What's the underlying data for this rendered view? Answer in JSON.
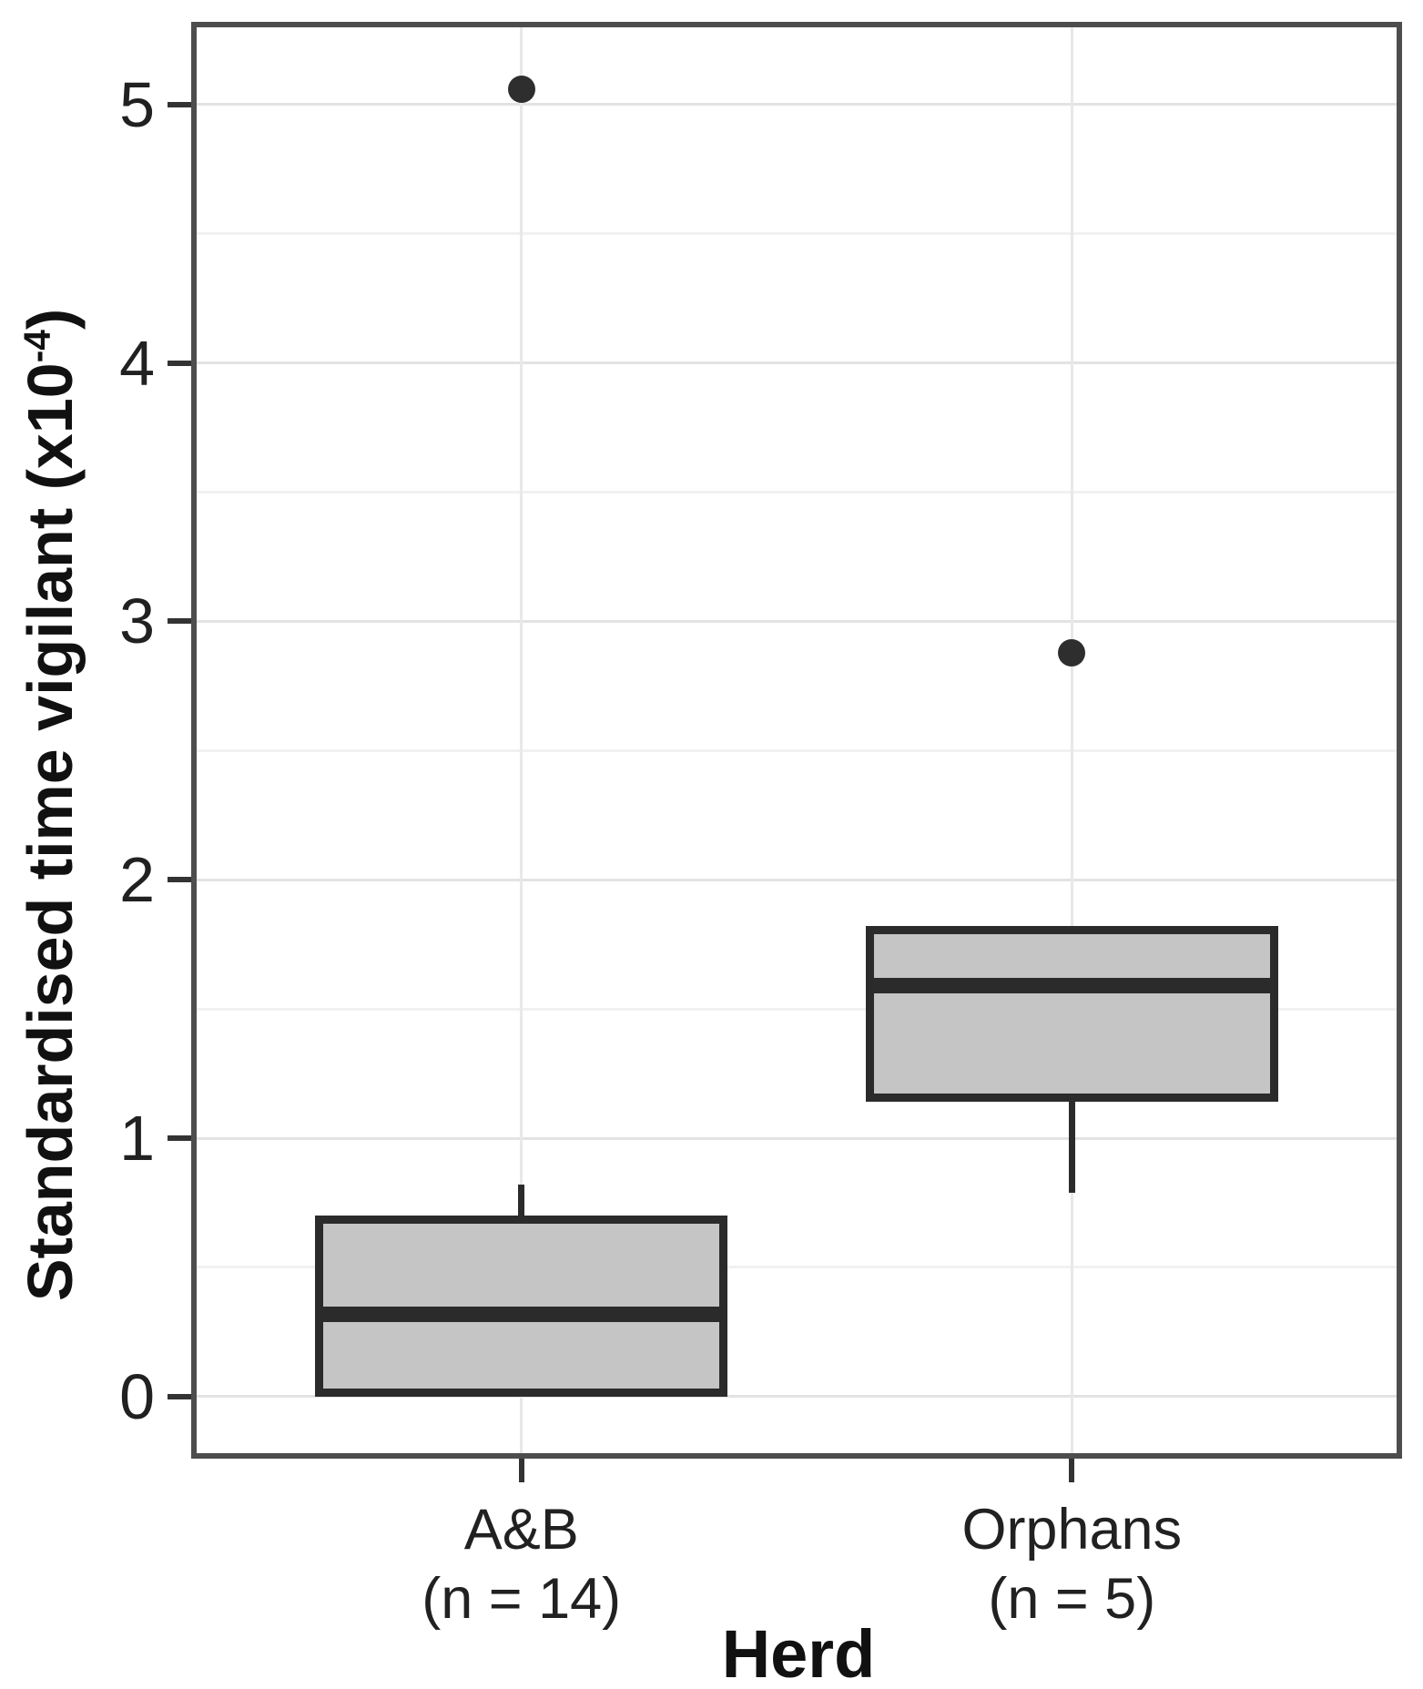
{
  "chart_data": {
    "type": "boxplot",
    "title": "",
    "xlabel": "Herd",
    "ylabel": "Standardised time vigilant (x10⁻⁴)",
    "ylabel_parts": {
      "prefix": "Standardised time vigilant (x10",
      "sup": "-4",
      "suffix": ")"
    },
    "y_axis": {
      "major_ticks": [
        0,
        1,
        2,
        3,
        4,
        5
      ],
      "major_tick_labels": [
        "0",
        "1",
        "2",
        "3",
        "4",
        "5"
      ],
      "minor_ticks": [
        0.5,
        1.5,
        2.5,
        3.5,
        4.5
      ],
      "range": [
        -0.24,
        5.32
      ],
      "grid": "on"
    },
    "x_axis": {
      "domain": [
        0.4,
        2.6
      ],
      "positions": [
        1,
        2
      ],
      "grid": "on"
    },
    "categories": [
      {
        "label": "A&B",
        "sublabel": "(n = 14)",
        "n": 14
      },
      {
        "label": "Orphans",
        "sublabel": "(n = 5)",
        "n": 5
      }
    ],
    "series": [
      {
        "name": "A&B",
        "q1": 0.0,
        "median": 0.32,
        "q3": 0.7,
        "whisker_low": 0.0,
        "whisker_high": 0.82,
        "outliers": [
          5.06
        ]
      },
      {
        "name": "Orphans",
        "q1": 1.14,
        "median": 1.59,
        "q3": 1.82,
        "whisker_low": 0.79,
        "whisker_high": 1.82,
        "outliers": [
          2.88
        ]
      }
    ],
    "box_width_fraction": 0.75,
    "colors": {
      "box_fill": "#c5c5c5",
      "box_border": "#2b2b2b",
      "outlier": "#2e2e2e",
      "panel_border": "#4d4d4d",
      "grid_major": "#e3e3e3",
      "grid_minor": "#f1f1f1",
      "text": "#212121",
      "background": "#ffffff"
    }
  }
}
